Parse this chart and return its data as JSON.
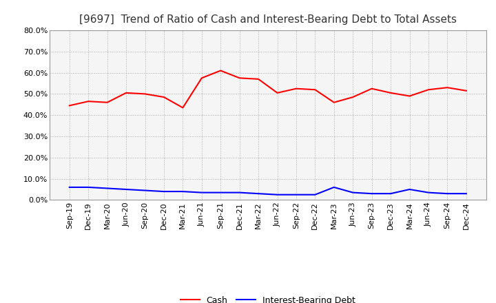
{
  "title": "[9697]  Trend of Ratio of Cash and Interest-Bearing Debt to Total Assets",
  "x_labels": [
    "Sep-19",
    "Dec-19",
    "Mar-20",
    "Jun-20",
    "Sep-20",
    "Dec-20",
    "Mar-21",
    "Jun-21",
    "Sep-21",
    "Dec-21",
    "Mar-22",
    "Jun-22",
    "Sep-22",
    "Dec-22",
    "Mar-23",
    "Jun-23",
    "Sep-23",
    "Dec-23",
    "Mar-24",
    "Jun-24",
    "Sep-24",
    "Dec-24"
  ],
  "cash": [
    44.5,
    46.5,
    46.0,
    50.5,
    50.0,
    48.5,
    43.5,
    57.5,
    61.0,
    57.5,
    57.0,
    50.5,
    52.5,
    52.0,
    46.0,
    48.5,
    52.5,
    50.5,
    49.0,
    52.0,
    53.0,
    51.5
  ],
  "interest_bearing_debt": [
    6.0,
    6.0,
    5.5,
    5.0,
    4.5,
    4.0,
    4.0,
    3.5,
    3.5,
    3.5,
    3.0,
    2.5,
    2.5,
    2.5,
    6.0,
    3.5,
    3.0,
    3.0,
    5.0,
    3.5,
    3.0,
    3.0
  ],
  "cash_color": "#ff0000",
  "debt_color": "#0000ff",
  "background_color": "#ffffff",
  "plot_bg_color": "#f5f5f5",
  "ylim": [
    0,
    80
  ],
  "yticks": [
    0,
    10,
    20,
    30,
    40,
    50,
    60,
    70,
    80
  ],
  "legend_cash": "Cash",
  "legend_debt": "Interest-Bearing Debt",
  "title_fontsize": 11,
  "tick_fontsize": 8,
  "legend_fontsize": 9,
  "grid_color": "#aaaaaa",
  "line_width": 1.5
}
